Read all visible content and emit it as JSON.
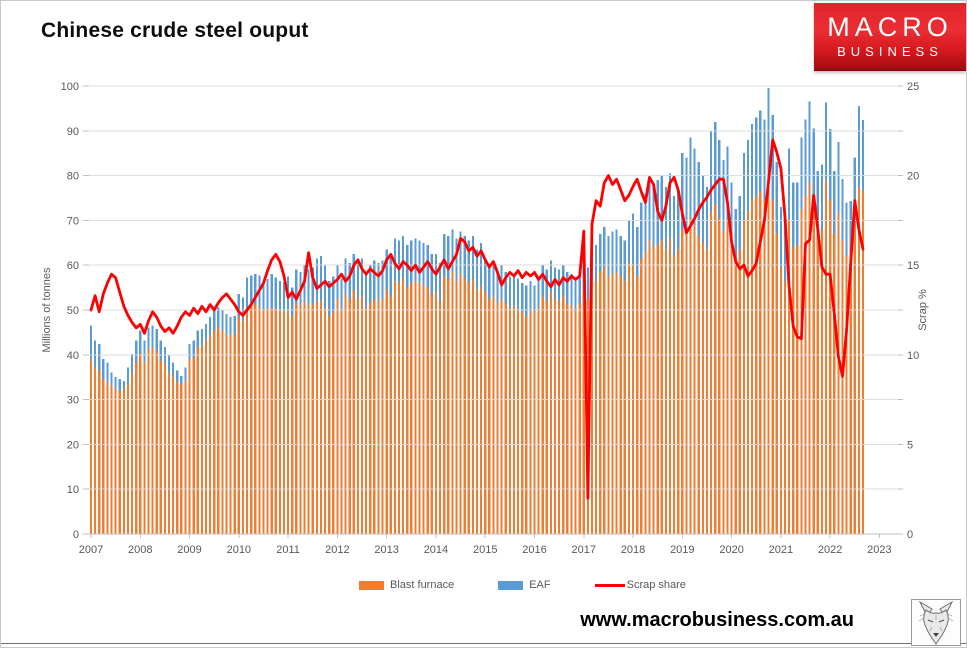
{
  "header": {
    "title": "Chinese crude steel ouput"
  },
  "logo": {
    "line1": "MACRO",
    "line2": "BUSINESS",
    "bg_color": "#d5191f",
    "text_color": "#ffffff"
  },
  "footer": {
    "website": "www.macrobusiness.com.au",
    "logo_icon": "wolf-sketch-logo"
  },
  "chart_data": {
    "type": "combo-stacked-bar-line",
    "title": "Chinese crude steel ouput",
    "x_start_month": "2007-01",
    "x_end_month": "2022-09",
    "x_tick_labels": [
      "2007",
      "2008",
      "2009",
      "2010",
      "2011",
      "2012",
      "2013",
      "2014",
      "2015",
      "2016",
      "2017",
      "2018",
      "2019",
      "2020",
      "2021",
      "2022",
      "2023"
    ],
    "left_axis": {
      "label": "Millions of tonnes",
      "min": 0,
      "max": 100,
      "tick_step": 10
    },
    "right_axis": {
      "label": "Scrap %",
      "min": 0,
      "max": 25,
      "tick_step": 5
    },
    "grid": "horizontal",
    "legend_position": "bottom",
    "legend": [
      {
        "label": "Blast furnace",
        "color": "#ED7D31",
        "type": "bar"
      },
      {
        "label": "EAF",
        "color": "#5B9BD5",
        "type": "bar"
      },
      {
        "label": "Scrap share",
        "color": "#FF0000",
        "type": "line"
      }
    ],
    "colors": {
      "blast_furnace": "#ED7D31",
      "eaf": "#5B9BD5",
      "scrap_share": "#FF0000",
      "gridline": "#d9d9d9",
      "axis_text": "#595959",
      "axis_line": "#bfbfbf"
    },
    "series": {
      "blast_furnace": [
        39.1,
        37.2,
        36.5,
        34.6,
        33.9,
        33.1,
        32.4,
        32.0,
        32.4,
        33.5,
        35.7,
        38.3,
        40.2,
        38.3,
        41.3,
        41.7,
        40.9,
        38.7,
        37.9,
        36.1,
        35.0,
        33.9,
        33.5,
        34.2,
        39.1,
        39.4,
        41.7,
        42.0,
        43.2,
        44.3,
        45.4,
        46.1,
        45.4,
        44.6,
        44.3,
        44.6,
        48.4,
        47.6,
        50.6,
        51.0,
        51.3,
        50.6,
        49.9,
        50.2,
        50.6,
        50.2,
        49.9,
        49.5,
        50.0,
        48.5,
        51.5,
        51.0,
        52.0,
        51.0,
        51.5,
        52.0,
        52.0,
        50.5,
        48.5,
        49.5,
        52.5,
        50.0,
        53.5,
        52.5,
        54.5,
        52.5,
        53.0,
        50.5,
        51.5,
        52.5,
        52.0,
        52.5,
        54.5,
        53.0,
        56.5,
        56.0,
        57.0,
        55.0,
        56.0,
        56.5,
        56.0,
        55.5,
        55.0,
        53.5,
        54.0,
        52.0,
        57.5,
        57.0,
        58.5,
        56.5,
        58.0,
        57.0,
        56.0,
        57.0,
        54.5,
        55.5,
        54.0,
        52.5,
        53.0,
        51.5,
        52.5,
        51.5,
        50.5,
        51.0,
        50.0,
        49.5,
        48.5,
        49.5,
        49.5,
        50.5,
        53.0,
        52.0,
        54.0,
        52.5,
        52.0,
        53.0,
        51.5,
        51.0,
        50.0,
        51.5,
        54.5,
        52.5,
        57.5,
        56.5,
        58.5,
        59.5,
        57.5,
        58.0,
        58.5,
        57.5,
        56.5,
        60.5,
        60.0,
        57.5,
        61.5,
        63.0,
        65.5,
        64.0,
        64.5,
        65.5,
        63.5,
        66.0,
        62.0,
        63.5,
        68.0,
        67.0,
        70.5,
        69.0,
        66.5,
        65.0,
        63.5,
        72.0,
        73.5,
        70.5,
        67.5,
        70.0,
        65.0,
        61.5,
        63.5,
        70.0,
        72.0,
        74.5,
        75.5,
        76.5,
        74.5,
        79.5,
        74.5,
        67.0,
        59.5,
        56.5,
        70.0,
        64.0,
        64.5,
        72.5,
        75.5,
        78.5,
        74.0,
        66.5,
        68.0,
        79.0,
        74.5,
        67.0,
        71.5,
        65.5,
        62.0,
        62.6,
        69.5,
        77.4,
        76.6
      ],
      "eaf": [
        7.4,
        6.0,
        5.9,
        4.5,
        4.4,
        3.0,
        2.6,
        2.6,
        1.8,
        3.7,
        4.5,
        4.9,
        5.2,
        4.9,
        4.8,
        4.8,
        4.9,
        4.5,
        3.8,
        3.7,
        3.3,
        2.6,
        1.8,
        3.0,
        3.3,
        3.8,
        3.7,
        3.8,
        3.7,
        4.1,
        4.5,
        4.5,
        4.5,
        4.5,
        4.1,
        4.1,
        5.2,
        5.2,
        6.7,
        6.7,
        6.7,
        7.1,
        6.6,
        6.7,
        7.4,
        7.1,
        6.6,
        6.7,
        7.5,
        6.5,
        7.5,
        7.5,
        8.0,
        8.0,
        8.0,
        9.5,
        10.0,
        9.5,
        8.0,
        8.0,
        7.5,
        7.0,
        8.0,
        8.0,
        8.0,
        8.0,
        8.5,
        8.0,
        8.5,
        8.5,
        8.5,
        8.5,
        9.0,
        9.0,
        9.5,
        9.5,
        9.5,
        9.5,
        9.5,
        9.5,
        9.5,
        9.5,
        9.5,
        9.0,
        8.5,
        8.5,
        9.5,
        9.5,
        9.5,
        9.5,
        9.5,
        9.5,
        9.5,
        9.5,
        9.0,
        9.5,
        7.5,
        7.0,
        7.5,
        7.0,
        7.5,
        7.0,
        7.0,
        7.0,
        7.0,
        6.5,
        7.0,
        7.0,
        6.0,
        6.5,
        7.0,
        7.0,
        7.0,
        7.0,
        7.0,
        7.0,
        7.0,
        7.0,
        6.5,
        6.5,
        7.5,
        7.0,
        8.0,
        8.0,
        8.5,
        9.0,
        9.0,
        9.5,
        9.5,
        9.0,
        9.0,
        9.5,
        11.5,
        11.0,
        12.5,
        13.0,
        14.0,
        14.0,
        14.5,
        14.5,
        14.0,
        14.5,
        13.5,
        13.0,
        17.0,
        17.0,
        18.0,
        17.0,
        16.5,
        15.0,
        14.0,
        18.0,
        18.5,
        17.5,
        16.0,
        16.5,
        13.5,
        11.0,
        12.0,
        15.0,
        16.0,
        17.0,
        17.5,
        18.0,
        18.0,
        20.0,
        19.0,
        16.0,
        13.5,
        12.5,
        16.0,
        14.5,
        14.0,
        16.0,
        17.0,
        18.0,
        16.5,
        14.5,
        14.5,
        17.3,
        15.9,
        14.0,
        16.0,
        13.7,
        12.0,
        11.7,
        14.5,
        18.1,
        15.8
      ],
      "scrap_share": [
        12.5,
        13.3,
        12.4,
        13.4,
        14.0,
        14.5,
        14.3,
        13.5,
        12.7,
        12.2,
        11.8,
        11.5,
        11.7,
        11.2,
        11.9,
        12.4,
        12.1,
        11.6,
        11.3,
        11.5,
        11.2,
        11.6,
        12.1,
        12.4,
        12.2,
        12.6,
        12.3,
        12.7,
        12.4,
        12.8,
        12.5,
        12.9,
        13.2,
        13.4,
        13.1,
        12.8,
        12.4,
        12.2,
        12.5,
        12.8,
        13.2,
        13.6,
        14.0,
        14.7,
        15.3,
        15.6,
        15.2,
        14.4,
        13.2,
        13.5,
        13.1,
        13.6,
        14.1,
        15.7,
        14.3,
        13.7,
        13.9,
        14.1,
        13.8,
        14.0,
        14.2,
        14.5,
        14.1,
        14.4,
        15.0,
        15.3,
        14.8,
        14.5,
        14.8,
        14.6,
        14.4,
        14.7,
        15.3,
        15.6,
        15.1,
        14.8,
        15.2,
        15.0,
        14.7,
        15.0,
        14.6,
        14.9,
        15.2,
        14.8,
        14.5,
        14.9,
        15.3,
        14.8,
        15.2,
        15.6,
        16.5,
        16.3,
        15.8,
        16.0,
        15.5,
        15.8,
        15.3,
        14.9,
        15.2,
        14.6,
        13.9,
        14.3,
        14.6,
        14.4,
        14.7,
        14.3,
        14.6,
        14.4,
        14.6,
        14.2,
        14.5,
        14.1,
        13.8,
        14.2,
        13.9,
        14.3,
        14.1,
        14.4,
        14.2,
        14.4,
        16.9,
        2.0,
        17.3,
        18.6,
        18.3,
        19.6,
        20.0,
        19.5,
        19.8,
        19.2,
        18.6,
        18.9,
        19.4,
        19.8,
        19.1,
        18.5,
        19.9,
        19.5,
        18.0,
        17.5,
        18.3,
        19.6,
        19.9,
        19.2,
        17.9,
        16.8,
        17.2,
        17.6,
        18.1,
        18.5,
        18.8,
        19.2,
        19.5,
        19.8,
        19.8,
        18.5,
        16.3,
        15.2,
        14.8,
        15.0,
        14.4,
        14.7,
        15.1,
        16.3,
        17.5,
        19.7,
        22.0,
        21.3,
        20.4,
        17.7,
        13.8,
        11.6,
        11.0,
        10.9,
        16.2,
        16.4,
        18.9,
        17.0,
        14.9,
        14.5,
        14.5,
        12.3,
        9.9,
        8.8,
        11.4,
        15.1,
        18.6,
        17.0,
        15.9
      ]
    }
  }
}
